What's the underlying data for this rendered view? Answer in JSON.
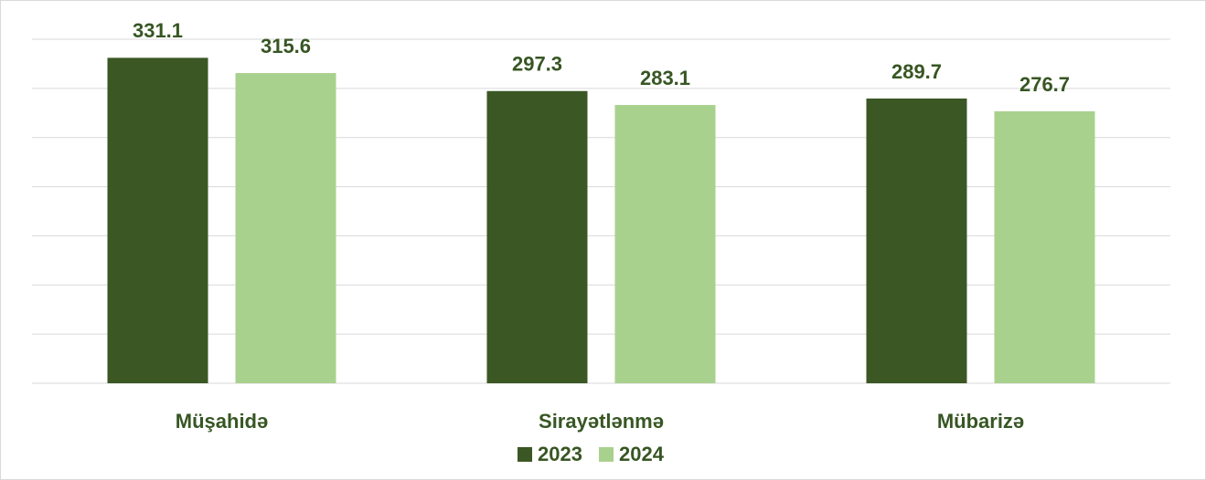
{
  "chart_data": {
    "type": "bar",
    "categories": [
      "Müşahidə",
      "Sirayətlənmə",
      "Mübarizə"
    ],
    "series": [
      {
        "name": "2023",
        "color": "#3b5724",
        "values": [
          331.1,
          297.3,
          289.7
        ]
      },
      {
        "name": "2024",
        "color": "#a9d18e",
        "values": [
          315.6,
          283.1,
          276.7
        ]
      }
    ],
    "ylim": [
      0,
      350
    ],
    "yticks": [
      0,
      50,
      100,
      150,
      200,
      250,
      300,
      350
    ],
    "grid": true,
    "legend": "bottom"
  }
}
